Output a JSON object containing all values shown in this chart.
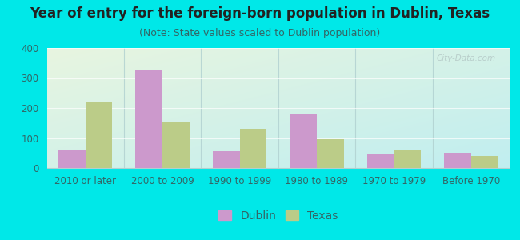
{
  "title": "Year of entry for the foreign-born population in Dublin, Texas",
  "subtitle": "(Note: State values scaled to Dublin population)",
  "categories": [
    "2010 or later",
    "2000 to 2009",
    "1990 to 1999",
    "1980 to 1989",
    "1970 to 1979",
    "Before 1970"
  ],
  "dublin_values": [
    60,
    325,
    55,
    178,
    45,
    50
  ],
  "texas_values": [
    222,
    152,
    130,
    97,
    62,
    40
  ],
  "dublin_color": "#cc99cc",
  "texas_color": "#bbcc88",
  "background_outer": "#00e8e8",
  "background_inner_topleft": "#e8f5e0",
  "background_inner_bottomright": "#c0eef0",
  "divider_color": "#b0d0d0",
  "ylim": [
    0,
    400
  ],
  "yticks": [
    0,
    100,
    200,
    300,
    400
  ],
  "bar_width": 0.35,
  "title_fontsize": 12,
  "subtitle_fontsize": 9,
  "legend_fontsize": 10,
  "tick_fontsize": 8.5,
  "title_color": "#222222",
  "subtitle_color": "#336666",
  "tick_color": "#336666"
}
